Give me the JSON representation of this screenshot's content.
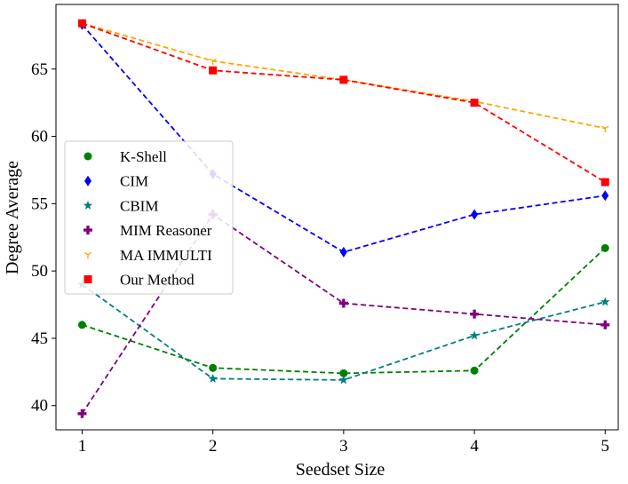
{
  "chart_data": {
    "type": "line",
    "title": "",
    "xlabel": "Seedset Size",
    "ylabel": "Degree Average",
    "x": [
      1,
      2,
      3,
      4,
      5
    ],
    "xlim": [
      0.8,
      5.1
    ],
    "ylim": [
      38.2,
      69.8
    ],
    "xticks": [
      1,
      2,
      3,
      4,
      5
    ],
    "yticks": [
      40,
      45,
      50,
      55,
      60,
      65
    ],
    "grid": false,
    "legend_position": "center-left",
    "series": [
      {
        "name": "K-Shell",
        "values": [
          46.0,
          42.8,
          42.4,
          42.6,
          51.7
        ],
        "color": "#008000",
        "marker": "circle"
      },
      {
        "name": "CIM",
        "values": [
          68.3,
          57.2,
          51.4,
          54.2,
          55.6
        ],
        "color": "#0000ff",
        "marker": "diamond"
      },
      {
        "name": "CBIM",
        "values": [
          49.0,
          42.0,
          41.9,
          45.2,
          47.7
        ],
        "color": "#008080",
        "marker": "star"
      },
      {
        "name": "MIM Reasoner",
        "values": [
          39.4,
          54.2,
          47.6,
          46.8,
          46.0
        ],
        "color": "#800080",
        "marker": "plus"
      },
      {
        "name": "MA IMMULTI",
        "values": [
          68.4,
          65.6,
          64.2,
          62.6,
          60.6
        ],
        "color": "#ffa500",
        "marker": "tri"
      },
      {
        "name": "Our Method",
        "values": [
          68.4,
          64.9,
          64.2,
          62.5,
          56.6
        ],
        "color": "#ff0000",
        "marker": "square"
      }
    ]
  }
}
